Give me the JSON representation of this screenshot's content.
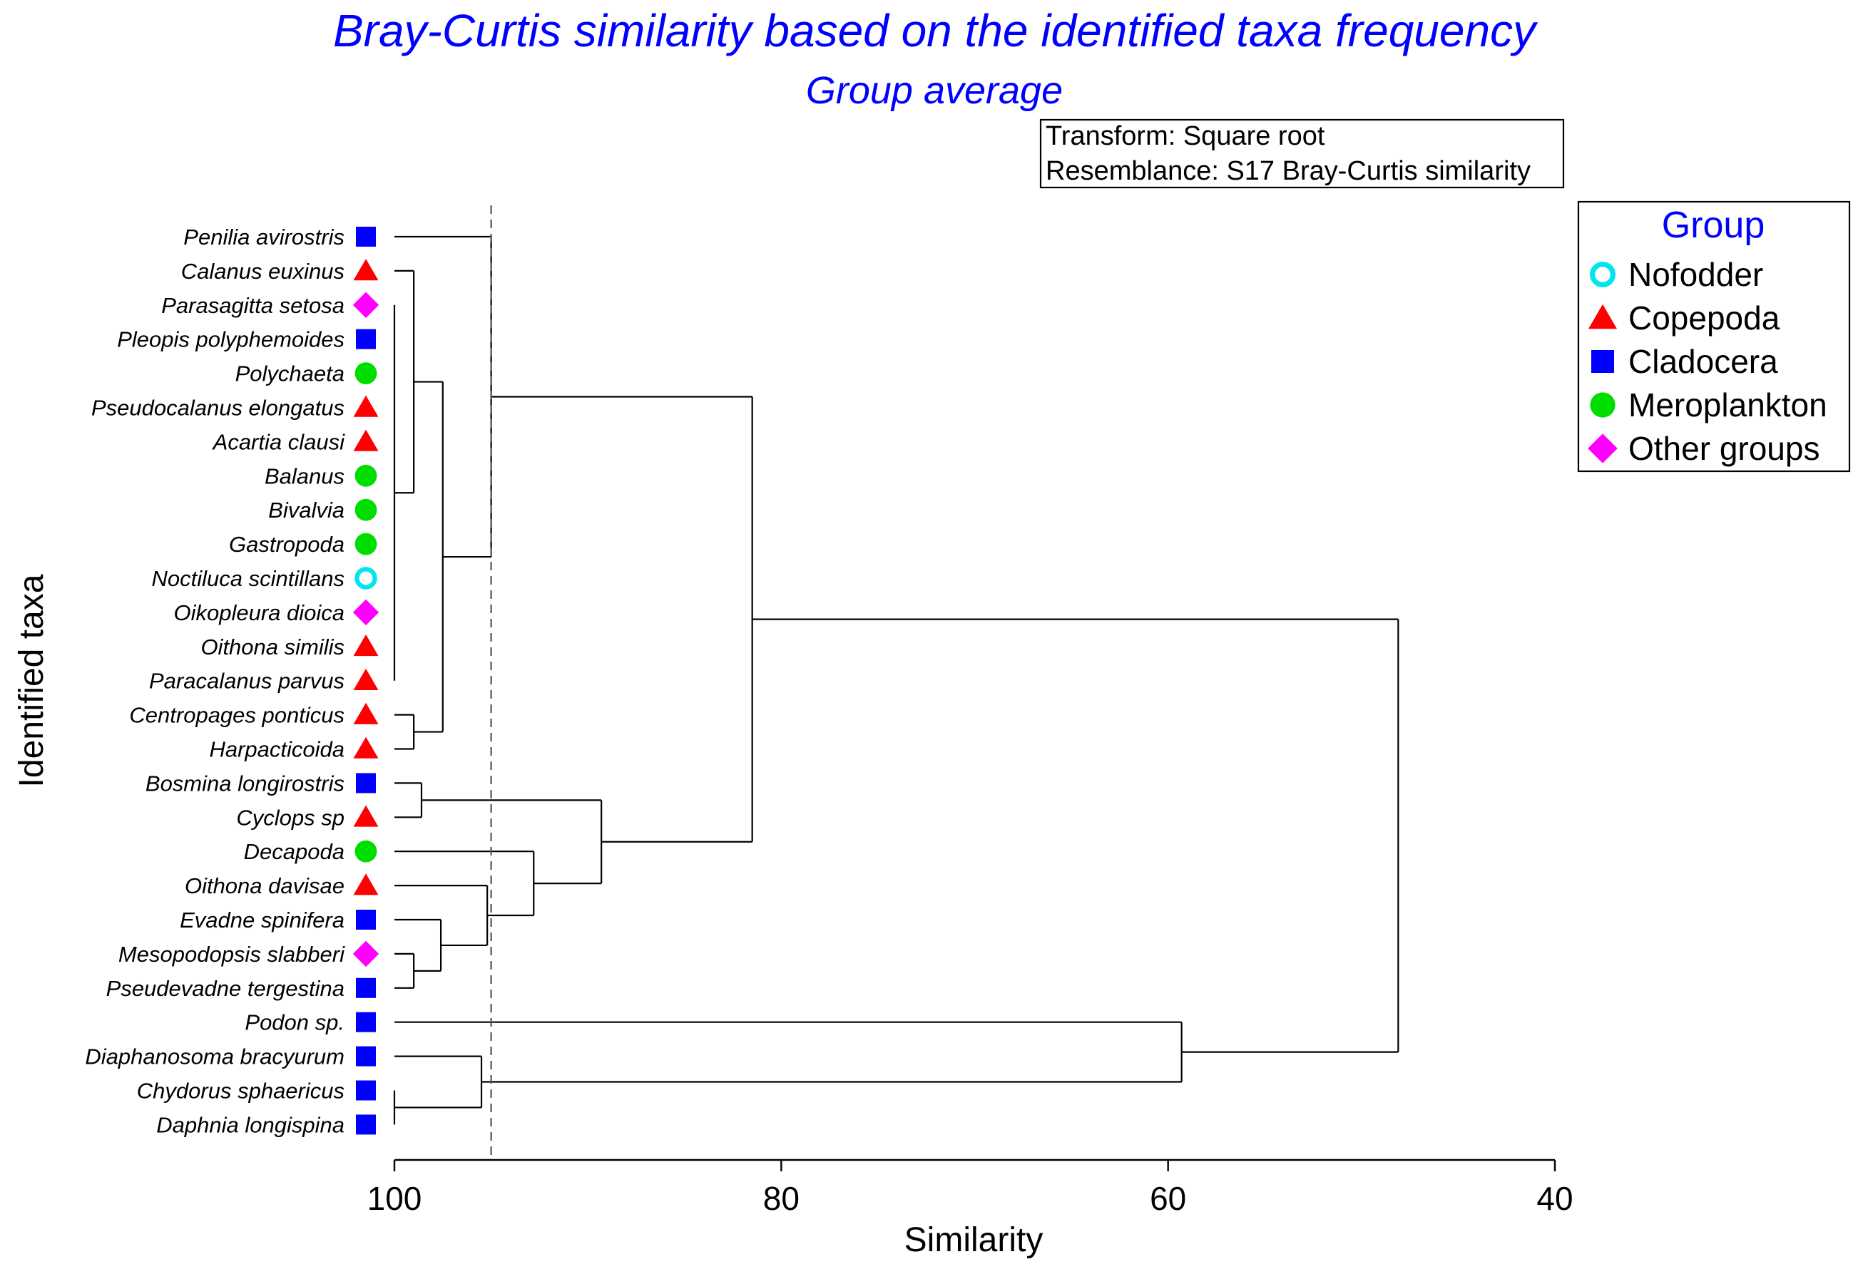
{
  "chart_data": {
    "type": "dendrogram",
    "title": "Bray-Curtis similarity based on the identified taxa frequency",
    "subtitle": "Group average",
    "xlabel": "Similarity",
    "ylabel": "Identified taxa",
    "xlim": [
      100,
      40
    ],
    "xticks": [
      100,
      80,
      60,
      40
    ],
    "cutoff_similarity": 95,
    "info_box": [
      "Transform: Square root",
      "Resemblance: S17 Bray-Curtis similarity"
    ],
    "legend": {
      "title": "Group",
      "items": [
        {
          "label": "Nofodder",
          "shape": "ring",
          "color": "#00e5ee"
        },
        {
          "label": "Copepoda",
          "shape": "triangle",
          "color": "#ff0000"
        },
        {
          "label": "Cladocera",
          "shape": "square",
          "color": "#0000ff"
        },
        {
          "label": "Meroplankton",
          "shape": "circle",
          "color": "#00dd00"
        },
        {
          "label": "Other groups",
          "shape": "diamond",
          "color": "#ff00ff"
        }
      ]
    },
    "leaves": [
      {
        "name": "Penilia avirostris",
        "group": "Cladocera"
      },
      {
        "name": "Calanus euxinus",
        "group": "Copepoda"
      },
      {
        "name": "Parasagitta setosa",
        "group": "Other groups"
      },
      {
        "name": "Pleopis polyphemoides",
        "group": "Cladocera"
      },
      {
        "name": "Polychaeta",
        "group": "Meroplankton"
      },
      {
        "name": "Pseudocalanus elongatus",
        "group": "Copepoda"
      },
      {
        "name": "Acartia clausi",
        "group": "Copepoda"
      },
      {
        "name": "Balanus",
        "group": "Meroplankton"
      },
      {
        "name": "Bivalvia",
        "group": "Meroplankton"
      },
      {
        "name": "Gastropoda",
        "group": "Meroplankton"
      },
      {
        "name": "Noctiluca scintillans",
        "group": "Nofodder"
      },
      {
        "name": "Oikopleura dioica",
        "group": "Other groups"
      },
      {
        "name": "Oithona similis",
        "group": "Copepoda"
      },
      {
        "name": "Paracalanus parvus",
        "group": "Copepoda"
      },
      {
        "name": "Centropages ponticus",
        "group": "Copepoda"
      },
      {
        "name": "Harpacticoida",
        "group": "Copepoda"
      },
      {
        "name": "Bosmina longirostris",
        "group": "Cladocera"
      },
      {
        "name": "Cyclops sp",
        "group": "Copepoda"
      },
      {
        "name": "Decapoda",
        "group": "Meroplankton"
      },
      {
        "name": "Oithona davisae",
        "group": "Copepoda"
      },
      {
        "name": "Evadne spinifera",
        "group": "Cladocera"
      },
      {
        "name": "Mesopodopsis slabberi",
        "group": "Other groups"
      },
      {
        "name": "Pseudevadne tergestina",
        "group": "Cladocera"
      },
      {
        "name": "Podon sp.",
        "group": "Cladocera"
      },
      {
        "name": "Diaphanosoma bracyurum",
        "group": "Cladocera"
      },
      {
        "name": "Chydorus sphaericus",
        "group": "Cladocera"
      },
      {
        "name": "Daphnia longispina",
        "group": "Cladocera"
      }
    ],
    "merges": [
      {
        "id": "A",
        "children": [
          "L2",
          "L3",
          "L4",
          "L5",
          "L6",
          "L7",
          "L8",
          "L9",
          "L10",
          "L11",
          "L12",
          "L13"
        ],
        "similarity": 100
      },
      {
        "id": "B",
        "children": [
          "L1",
          "A"
        ],
        "similarity": 99
      },
      {
        "id": "C",
        "children": [
          "L14",
          "L15"
        ],
        "similarity": 99
      },
      {
        "id": "D",
        "children": [
          "B",
          "C"
        ],
        "similarity": 97.5
      },
      {
        "id": "E",
        "children": [
          "L0",
          "D"
        ],
        "similarity": 95
      },
      {
        "id": "F",
        "children": [
          "L16",
          "L17"
        ],
        "similarity": 98.6
      },
      {
        "id": "G",
        "children": [
          "L21",
          "L22"
        ],
        "similarity": 99
      },
      {
        "id": "H",
        "children": [
          "L20",
          "G"
        ],
        "similarity": 97.6
      },
      {
        "id": "I",
        "children": [
          "L19",
          "H"
        ],
        "similarity": 95.2
      },
      {
        "id": "J",
        "children": [
          "L18",
          "I"
        ],
        "similarity": 92.8
      },
      {
        "id": "K",
        "children": [
          "F",
          "J"
        ],
        "similarity": 89.3
      },
      {
        "id": "M",
        "children": [
          "E",
          "K"
        ],
        "similarity": 81.5
      },
      {
        "id": "N",
        "children": [
          "L25",
          "L26"
        ],
        "similarity": 100
      },
      {
        "id": "O",
        "children": [
          "L24",
          "N"
        ],
        "similarity": 95.5
      },
      {
        "id": "P",
        "children": [
          "L23",
          "O"
        ],
        "similarity": 59.3
      },
      {
        "id": "Q",
        "children": [
          "M",
          "P"
        ],
        "similarity": 48.1
      }
    ]
  }
}
